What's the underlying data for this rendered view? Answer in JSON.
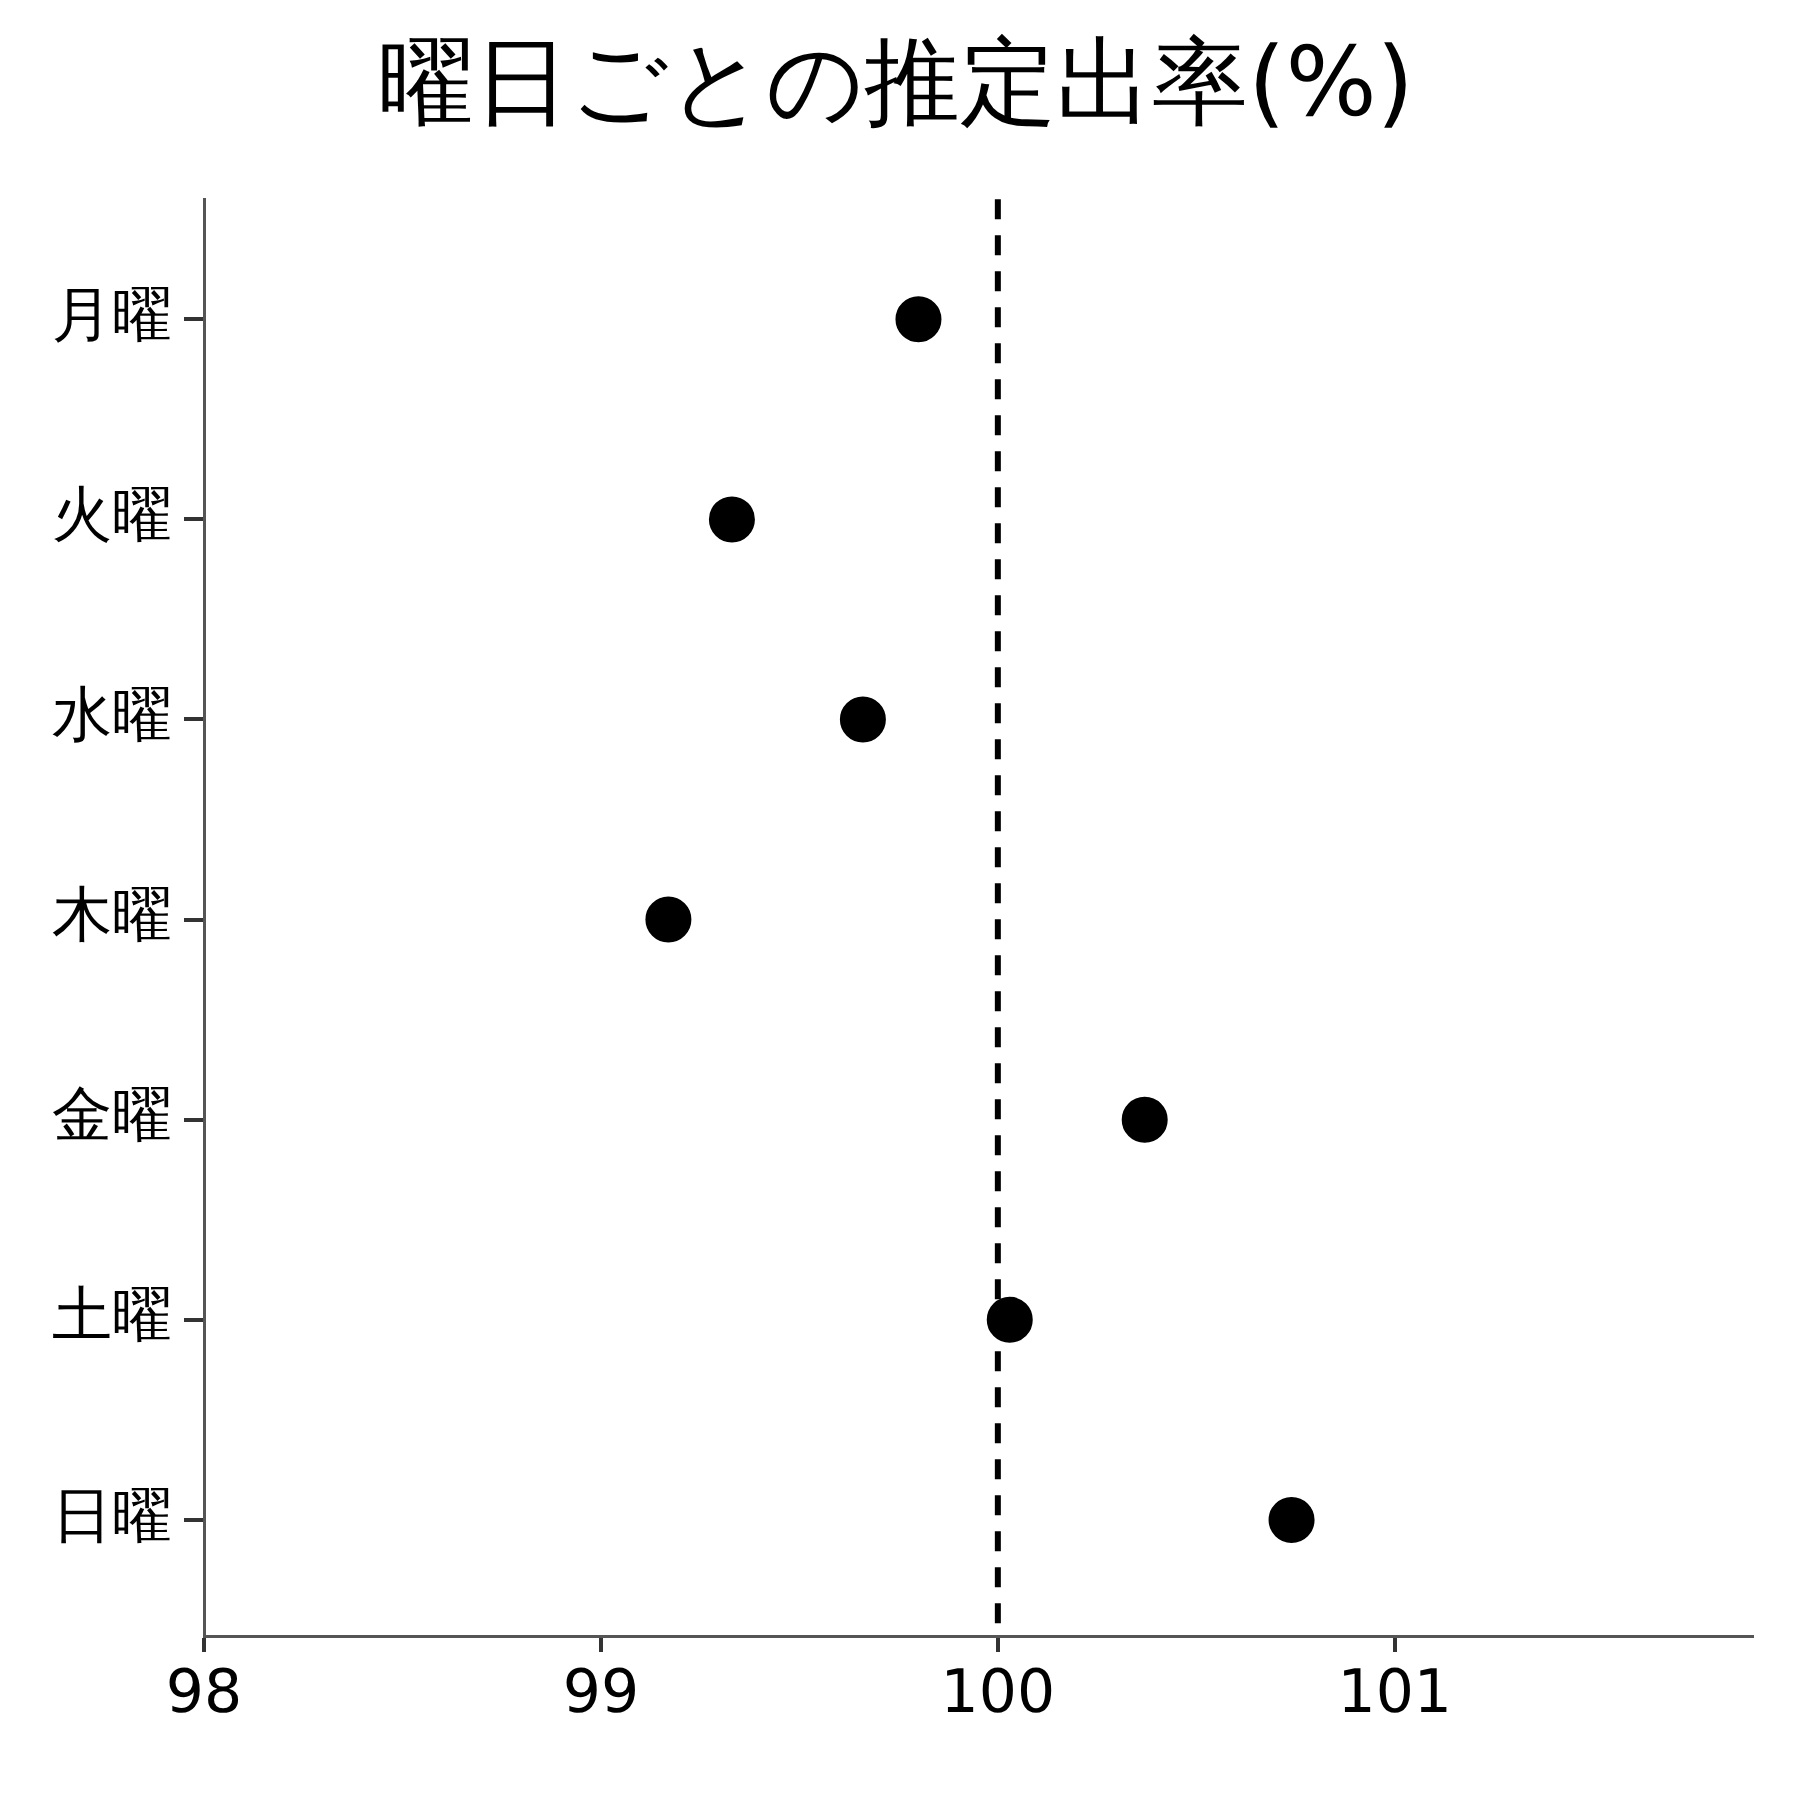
{
  "chart_data": {
    "type": "scatter",
    "title": "曜日ごとの推定出率(%)",
    "orientation": "horizontal",
    "categories": [
      "月曜",
      "火曜",
      "水曜",
      "木曜",
      "金曜",
      "土曜",
      "日曜"
    ],
    "series": [
      {
        "color": "#000000",
        "values": [
          99.8,
          99.33,
          99.66,
          99.17,
          100.37,
          100.03,
          100.74
        ]
      }
    ],
    "xlim": [
      98,
      101.9
    ],
    "xticks": [
      98,
      99,
      100,
      101
    ],
    "ref_lines": [
      {
        "axis": "x",
        "value": 100,
        "line_style": "dashed",
        "color": "#000000"
      }
    ],
    "marker": "circle",
    "grid": false,
    "legend": false
  }
}
